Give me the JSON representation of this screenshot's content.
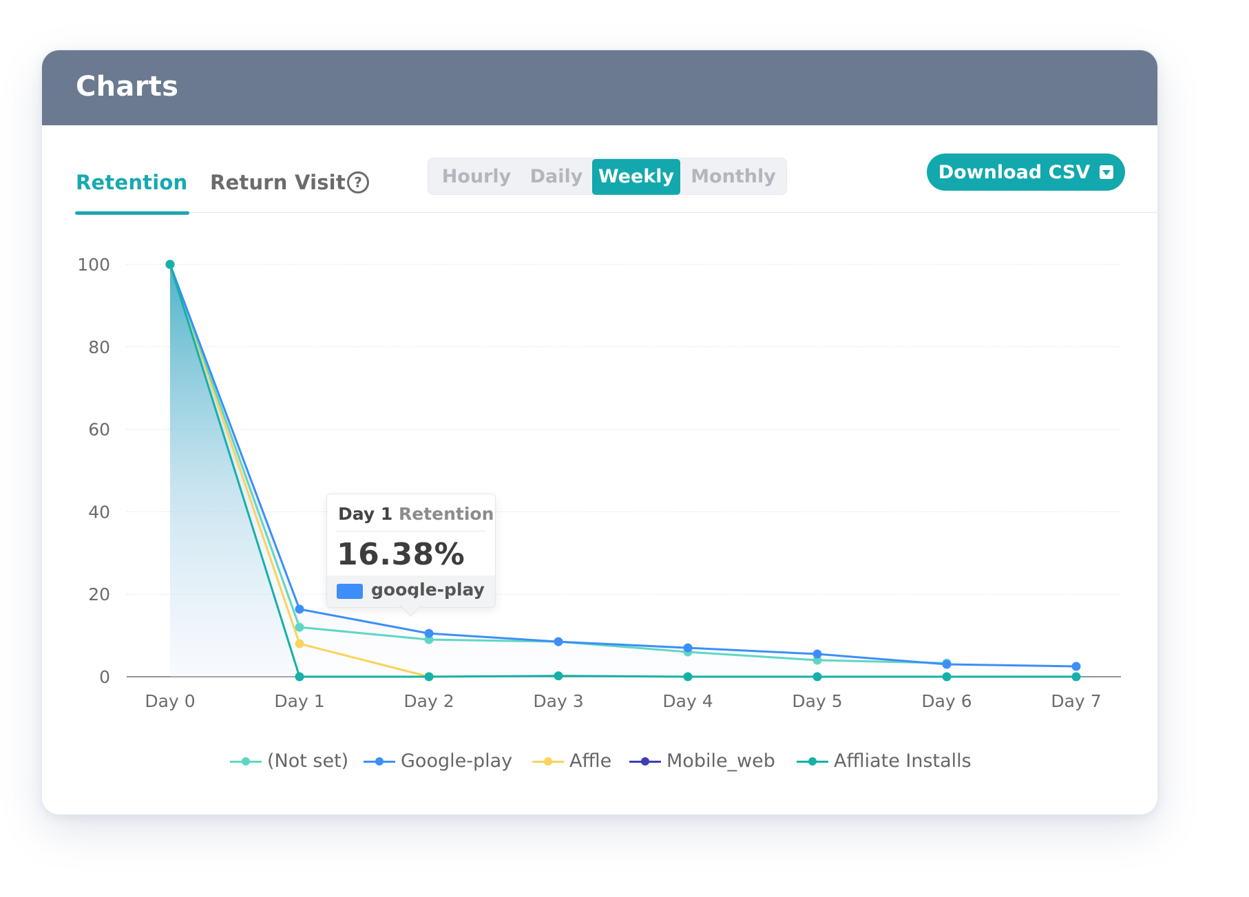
{
  "header": {
    "title": "Charts"
  },
  "tabs": [
    {
      "label": "Retention",
      "active": true
    },
    {
      "label": "Return Visit",
      "active": false
    }
  ],
  "help_icon": {
    "glyph": "?"
  },
  "granularity": {
    "options": [
      "Hourly",
      "Daily",
      "Weekly",
      "Monthly"
    ],
    "selected": "Weekly"
  },
  "download_button": {
    "label": "Download CSV"
  },
  "tooltip": {
    "day": "Day 1",
    "metric": "Retention",
    "value": "16.38%",
    "series": "google-play",
    "swatch_color": "#3d8ef8"
  },
  "legend": [
    {
      "label": "(Not set)",
      "color": "#5fd6c4"
    },
    {
      "label": "Google-play",
      "color": "#3d8ef8"
    },
    {
      "label": "Affle",
      "color": "#f9d35b"
    },
    {
      "label": "Mobile_web",
      "color": "#3b3fb0"
    },
    {
      "label": "Affliate Installs",
      "color": "#15b0a8"
    }
  ],
  "chart_data": {
    "type": "line",
    "x": [
      "Day 0",
      "Day 1",
      "Day 2",
      "Day 3",
      "Day 4",
      "Day 5",
      "Day 6",
      "Day 7"
    ],
    "yticks": [
      0,
      20,
      40,
      60,
      80,
      100
    ],
    "ylim": [
      0,
      100
    ],
    "grid": true,
    "legend_position": "bottom",
    "series": [
      {
        "name": "(Not set)",
        "color": "#5fd6c4",
        "values": [
          100,
          12,
          9,
          8.5,
          6,
          4,
          3.3,
          null
        ]
      },
      {
        "name": "Google-play",
        "color": "#3d8ef8",
        "values": [
          100,
          16.38,
          10.5,
          8.5,
          7,
          5.5,
          3,
          2.5
        ]
      },
      {
        "name": "Affle",
        "color": "#f9d35b",
        "values": [
          100,
          8,
          0,
          null,
          null,
          null,
          null,
          null
        ]
      },
      {
        "name": "Mobile_web",
        "color": "#3b3fb0",
        "values": [
          null,
          null,
          null,
          null,
          null,
          null,
          null,
          null
        ]
      },
      {
        "name": "Affliate Installs",
        "color": "#15b0a8",
        "values": [
          100,
          0,
          0,
          0.2,
          0,
          0,
          0,
          0
        ]
      }
    ]
  }
}
